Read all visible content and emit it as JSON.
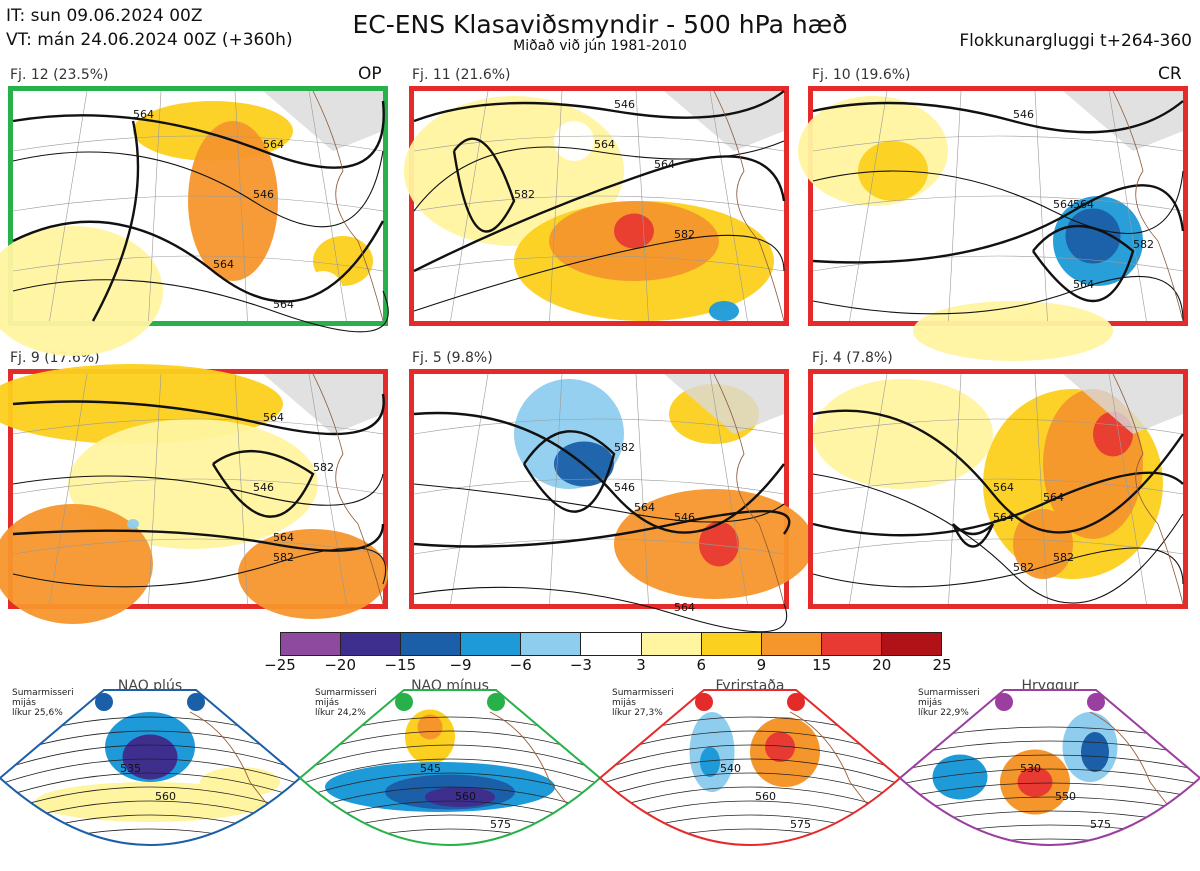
{
  "header": {
    "it": "IT: sun 09.06.2024 00Z",
    "vt": "VT: mán 24.06.2024 00Z  (+360h)",
    "title": "EC-ENS Klasaviðsmyndir - 500 hPa hæð",
    "subtitle": "Miðað við jún 1981-2010",
    "window": "Flokkunargluggi t+264-360"
  },
  "panels": [
    {
      "label": "Fj. 12 (23.5%)",
      "tag": "OP",
      "border": "#28b04b",
      "contours": [
        "564",
        "546",
        "564",
        "564",
        "564"
      ]
    },
    {
      "label": "Fj. 11 (21.6%)",
      "tag": "",
      "border": "#e52a2a",
      "contours": [
        "546",
        "564",
        "564",
        "582",
        "582"
      ]
    },
    {
      "label": "Fj. 10 (19.6%)",
      "tag": "CR",
      "border": "#e52a2a",
      "contours": [
        "546",
        "564",
        "564",
        "564",
        "582"
      ]
    },
    {
      "label": "Fj. 9 (17.6%)",
      "tag": "",
      "border": "#e52a2a",
      "contours": [
        "564",
        "546",
        "564",
        "582",
        "582"
      ]
    },
    {
      "label": "Fj. 5 (9.8%)",
      "tag": "",
      "border": "#e52a2a",
      "contours": [
        "546",
        "564",
        "546",
        "564",
        "582"
      ]
    },
    {
      "label": "Fj. 4 (7.8%)",
      "tag": "",
      "border": "#e52a2a",
      "contours": [
        "564",
        "582",
        "564",
        "582",
        "564"
      ]
    }
  ],
  "colorbar": {
    "ticks": [
      "−25",
      "−20",
      "−15",
      "−9",
      "−6",
      "−3",
      "3",
      "6",
      "9",
      "15",
      "20",
      "25"
    ],
    "colors": [
      "#8e4a9e",
      "#3e2f8f",
      "#1a5fa8",
      "#1e9ad8",
      "#8fcdef",
      "#ffffff",
      "#fff4a0",
      "#fcd01e",
      "#f5962d",
      "#e83a32",
      "#b11218"
    ]
  },
  "regimes": [
    {
      "title": "NAO plús",
      "note": [
        "Sumarmisseri",
        "mijás",
        "líkur 25,6%"
      ],
      "color": "#1a5fa8",
      "contours": [
        "535",
        "560"
      ]
    },
    {
      "title": "NAO mínus",
      "note": [
        "Sumarmisseri",
        "mijás",
        "líkur 24,2%"
      ],
      "color": "#28b04b",
      "contours": [
        "545",
        "560",
        "575"
      ]
    },
    {
      "title": "Fyrirstaða",
      "note": [
        "Sumarmisseri",
        "mijás",
        "líkur 27,3%"
      ],
      "color": "#e52a2a",
      "contours": [
        "540",
        "560",
        "575"
      ]
    },
    {
      "title": "Hryggur",
      "note": [
        "Sumarmisseri",
        "mijás",
        "líkur 22,9%"
      ],
      "color": "#9a3ea0",
      "contours": [
        "530",
        "550",
        "575"
      ]
    }
  ]
}
